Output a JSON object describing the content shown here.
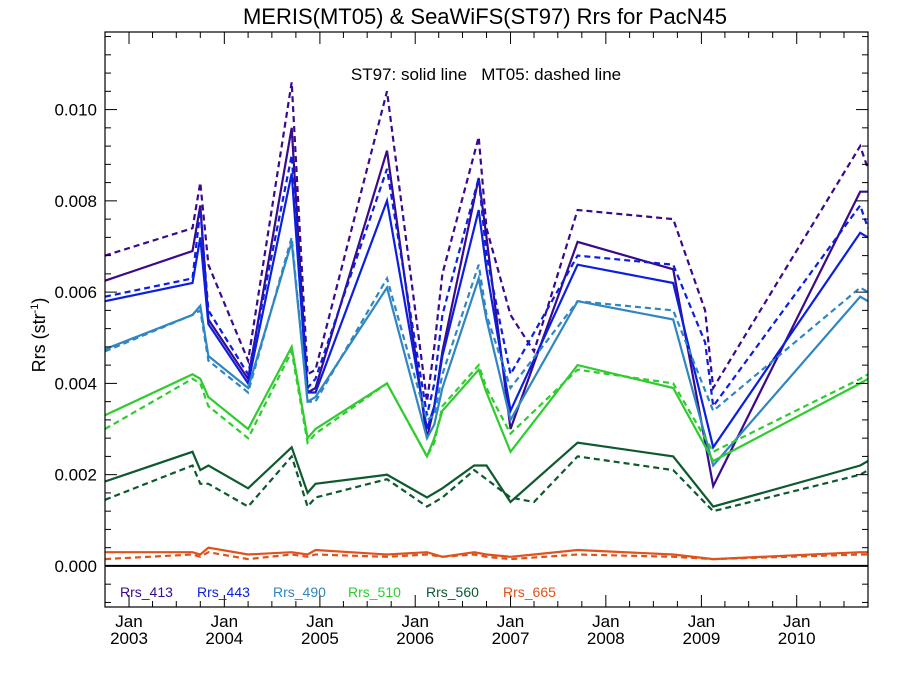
{
  "chart_data": {
    "type": "line",
    "title": "MERIS(MT05) & SeaWiFS(ST97)  Rrs for PacN45",
    "annotation": "ST97: solid line   MT05: dashed line",
    "ylabel": "Rrs (str",
    "ylabel_sup": "-1",
    "ylabel_close": ")",
    "xlim": [
      "2002-10-01",
      "2010-10-01"
    ],
    "ylim": [
      -0.0009,
      0.0117
    ],
    "yticks": [
      0.0,
      0.002,
      0.004,
      0.006,
      0.008,
      0.01
    ],
    "yticklabels": [
      "0.000",
      "0.002",
      "0.004",
      "0.006",
      "0.008",
      "0.010"
    ],
    "xticks": [
      {
        "date": "2003-01-01",
        "month": "Jan",
        "year": "2003"
      },
      {
        "date": "2004-01-01",
        "month": "Jan",
        "year": "2004"
      },
      {
        "date": "2005-01-01",
        "month": "Jan",
        "year": "2005"
      },
      {
        "date": "2006-01-01",
        "month": "Jan",
        "year": "2006"
      },
      {
        "date": "2007-01-01",
        "month": "Jan",
        "year": "2007"
      },
      {
        "date": "2008-01-01",
        "month": "Jan",
        "year": "2008"
      },
      {
        "date": "2009-01-01",
        "month": "Jan",
        "year": "2009"
      },
      {
        "date": "2010-01-01",
        "month": "Jan",
        "year": "2010"
      }
    ],
    "legend_position": "bottom-left",
    "series": [
      {
        "name": "Rrs_413",
        "sensor": "ST97",
        "style": "solid",
        "color": "#3a0a8c",
        "x": [
          "2002-10-01",
          "2003-09-01",
          "2003-10-01",
          "2003-11-01",
          "2004-04-01",
          "2004-09-15",
          "2004-11-15",
          "2004-12-15",
          "2005-09-15",
          "2006-02-15",
          "2006-03-15",
          "2006-04-15",
          "2006-09-01",
          "2006-10-01",
          "2007-01-01",
          "2007-09-15",
          "2008-09-15",
          "2009-02-15",
          "2010-09-01",
          "2010-10-01"
        ],
        "y": [
          0.00625,
          0.0069,
          0.0079,
          0.0054,
          0.0041,
          0.0096,
          0.0038,
          0.0039,
          0.0091,
          0.0028,
          0.0035,
          0.0047,
          0.0085,
          0.0072,
          0.003,
          0.0071,
          0.0065,
          0.00175,
          0.0082,
          0.0082
        ]
      },
      {
        "name": "Rrs_413",
        "sensor": "MT05",
        "style": "dashed",
        "color": "#3a0a8c",
        "x": [
          "2002-10-01",
          "2003-09-01",
          "2003-10-01",
          "2003-11-01",
          "2004-04-01",
          "2004-09-15",
          "2004-11-15",
          "2004-12-15",
          "2005-09-15",
          "2006-02-15",
          "2006-03-15",
          "2006-04-15",
          "2006-09-01",
          "2006-10-01",
          "2007-01-01",
          "2007-04-01",
          "2007-09-15",
          "2008-09-15",
          "2009-01-15",
          "2009-02-15",
          "2010-09-01",
          "2010-10-01"
        ],
        "y": [
          0.0068,
          0.0074,
          0.0084,
          0.0066,
          0.0045,
          0.0106,
          0.0042,
          0.0043,
          0.0104,
          0.0036,
          0.0048,
          0.0064,
          0.0094,
          0.0074,
          0.0055,
          0.0047,
          0.0078,
          0.0076,
          0.0056,
          0.0039,
          0.0092,
          0.0087
        ]
      },
      {
        "name": "Rrs_443",
        "sensor": "ST97",
        "style": "solid",
        "color": "#0a1fe0",
        "x": [
          "2002-10-01",
          "2003-09-01",
          "2003-10-01",
          "2003-11-01",
          "2004-04-01",
          "2004-09-15",
          "2004-11-15",
          "2004-12-15",
          "2005-09-15",
          "2006-02-15",
          "2006-03-15",
          "2006-04-15",
          "2006-09-01",
          "2006-10-01",
          "2007-01-01",
          "2007-09-15",
          "2008-09-15",
          "2009-02-15",
          "2010-09-01",
          "2010-10-01"
        ],
        "y": [
          0.0058,
          0.0062,
          0.0072,
          0.0053,
          0.004,
          0.0086,
          0.0038,
          0.0038,
          0.008,
          0.003,
          0.0035,
          0.0046,
          0.0078,
          0.0065,
          0.0034,
          0.0066,
          0.0062,
          0.0026,
          0.0073,
          0.0072
        ]
      },
      {
        "name": "Rrs_443",
        "sensor": "MT05",
        "style": "dashed",
        "color": "#0a1fe0",
        "x": [
          "2002-10-01",
          "2003-09-01",
          "2003-10-01",
          "2003-11-01",
          "2004-04-01",
          "2004-09-15",
          "2004-11-15",
          "2004-12-15",
          "2005-09-15",
          "2006-02-15",
          "2006-03-15",
          "2006-04-15",
          "2006-09-01",
          "2006-10-01",
          "2007-01-01",
          "2007-09-15",
          "2008-09-15",
          "2009-01-15",
          "2009-02-15",
          "2010-09-01",
          "2010-10-01"
        ],
        "y": [
          0.0059,
          0.0063,
          0.0078,
          0.0056,
          0.0042,
          0.009,
          0.0039,
          0.0041,
          0.0087,
          0.0033,
          0.004,
          0.0055,
          0.0085,
          0.0068,
          0.0042,
          0.0068,
          0.0066,
          0.0049,
          0.0035,
          0.0079,
          0.0074
        ]
      },
      {
        "name": "Rrs_490",
        "sensor": "ST97",
        "style": "solid",
        "color": "#2f86c2",
        "x": [
          "2002-10-01",
          "2003-09-01",
          "2003-10-01",
          "2003-11-01",
          "2004-04-01",
          "2004-09-15",
          "2004-11-15",
          "2004-12-15",
          "2005-09-15",
          "2006-02-15",
          "2006-03-15",
          "2006-04-15",
          "2006-09-01",
          "2006-10-01",
          "2007-01-01",
          "2007-09-15",
          "2008-09-15",
          "2009-02-15",
          "2010-09-01",
          "2010-10-01"
        ],
        "y": [
          0.00475,
          0.0055,
          0.0057,
          0.0046,
          0.0039,
          0.0071,
          0.0036,
          0.0037,
          0.0061,
          0.0028,
          0.0031,
          0.0039,
          0.0063,
          0.0054,
          0.0032,
          0.0058,
          0.0054,
          0.0022,
          0.0059,
          0.0058
        ]
      },
      {
        "name": "Rrs_490",
        "sensor": "MT05",
        "style": "dashed",
        "color": "#2f86c2",
        "x": [
          "2002-10-01",
          "2003-09-01",
          "2003-10-01",
          "2003-11-01",
          "2004-04-01",
          "2004-09-15",
          "2004-11-15",
          "2004-12-15",
          "2005-09-15",
          "2006-02-15",
          "2006-03-15",
          "2006-04-15",
          "2006-09-01",
          "2006-10-01",
          "2007-01-01",
          "2007-09-15",
          "2008-09-15",
          "2009-02-15",
          "2010-09-01",
          "2010-10-01"
        ],
        "y": [
          0.0047,
          0.0055,
          0.0056,
          0.0045,
          0.0038,
          0.0072,
          0.0036,
          0.0036,
          0.0063,
          0.0032,
          0.0033,
          0.0042,
          0.0066,
          0.0055,
          0.0039,
          0.0058,
          0.0056,
          0.0034,
          0.0061,
          0.006
        ]
      },
      {
        "name": "Rrs_510",
        "sensor": "ST97",
        "style": "solid",
        "color": "#2fcc2f",
        "x": [
          "2002-10-01",
          "2003-09-01",
          "2003-10-01",
          "2003-11-01",
          "2004-04-01",
          "2004-09-15",
          "2004-11-15",
          "2004-12-15",
          "2005-09-15",
          "2006-02-15",
          "2006-03-15",
          "2006-04-15",
          "2006-09-01",
          "2006-10-01",
          "2007-01-01",
          "2007-09-15",
          "2008-09-15",
          "2009-02-15",
          "2010-09-01",
          "2010-10-01"
        ],
        "y": [
          0.0033,
          0.0042,
          0.0041,
          0.0037,
          0.003,
          0.0048,
          0.0028,
          0.003,
          0.004,
          0.0024,
          0.0028,
          0.0034,
          0.0043,
          0.0038,
          0.0025,
          0.0044,
          0.0039,
          0.0023,
          0.004,
          0.0041
        ]
      },
      {
        "name": "Rrs_510",
        "sensor": "MT05",
        "style": "dashed",
        "color": "#2fcc2f",
        "x": [
          "2002-10-01",
          "2003-09-01",
          "2003-10-01",
          "2003-11-01",
          "2004-04-01",
          "2004-09-15",
          "2004-11-15",
          "2004-12-15",
          "2005-09-15",
          "2006-02-15",
          "2006-03-15",
          "2006-04-15",
          "2006-09-01",
          "2006-10-01",
          "2007-01-01",
          "2007-09-15",
          "2008-09-15",
          "2009-02-15",
          "2010-09-01",
          "2010-10-01"
        ],
        "y": [
          0.003,
          0.0041,
          0.004,
          0.0035,
          0.0028,
          0.0047,
          0.0027,
          0.0029,
          0.004,
          0.0024,
          0.0027,
          0.0035,
          0.0044,
          0.0039,
          0.0029,
          0.0043,
          0.004,
          0.0025,
          0.0041,
          0.0042
        ]
      },
      {
        "name": "Rrs_560",
        "sensor": "ST97",
        "style": "solid",
        "color": "#0e5a2e",
        "x": [
          "2002-10-01",
          "2003-09-01",
          "2003-10-01",
          "2003-11-01",
          "2004-04-01",
          "2004-09-15",
          "2004-11-15",
          "2004-12-15",
          "2005-09-15",
          "2006-02-15",
          "2006-04-15",
          "2006-08-15",
          "2006-10-01",
          "2007-01-01",
          "2007-09-15",
          "2008-09-15",
          "2009-02-15",
          "2010-09-01",
          "2010-10-01"
        ],
        "y": [
          0.00185,
          0.0025,
          0.0021,
          0.0022,
          0.0017,
          0.0026,
          0.0016,
          0.0018,
          0.002,
          0.0015,
          0.0017,
          0.0022,
          0.0022,
          0.0014,
          0.0027,
          0.0024,
          0.0013,
          0.0022,
          0.0023
        ]
      },
      {
        "name": "Rrs_560",
        "sensor": "MT05",
        "style": "dashed",
        "color": "#0e5a2e",
        "x": [
          "2002-10-01",
          "2003-09-01",
          "2003-10-01",
          "2003-11-01",
          "2004-04-01",
          "2004-09-15",
          "2004-11-15",
          "2004-12-15",
          "2005-09-15",
          "2006-02-15",
          "2006-04-15",
          "2006-08-15",
          "2006-10-01",
          "2007-01-01",
          "2007-04-01",
          "2007-09-15",
          "2008-09-15",
          "2009-02-15",
          "2010-09-01",
          "2010-10-01"
        ],
        "y": [
          0.00145,
          0.0022,
          0.0018,
          0.0018,
          0.0013,
          0.0024,
          0.0013,
          0.0015,
          0.0019,
          0.0013,
          0.0015,
          0.0021,
          0.0019,
          0.0015,
          0.0014,
          0.0024,
          0.0021,
          0.0012,
          0.002,
          0.0021
        ]
      },
      {
        "name": "Rrs_665",
        "sensor": "ST97",
        "style": "solid",
        "color": "#e0521a",
        "x": [
          "2002-10-01",
          "2003-09-01",
          "2003-10-01",
          "2003-11-01",
          "2004-04-01",
          "2004-09-15",
          "2004-11-15",
          "2004-12-15",
          "2005-09-15",
          "2006-02-15",
          "2006-04-15",
          "2006-08-15",
          "2006-10-01",
          "2007-01-01",
          "2007-04-01",
          "2007-09-15",
          "2008-09-15",
          "2009-02-15",
          "2010-09-01",
          "2010-10-01"
        ],
        "y": [
          0.0003,
          0.0003,
          0.00025,
          0.0004,
          0.00025,
          0.0003,
          0.00025,
          0.00035,
          0.00025,
          0.0003,
          0.0002,
          0.0003,
          0.00025,
          0.0002,
          0.00025,
          0.00035,
          0.00025,
          0.00015,
          0.0003,
          0.0003
        ]
      },
      {
        "name": "Rrs_665",
        "sensor": "MT05",
        "style": "dashed",
        "color": "#e0521a",
        "x": [
          "2002-10-01",
          "2003-09-01",
          "2003-10-01",
          "2003-11-01",
          "2004-04-01",
          "2004-09-15",
          "2004-11-15",
          "2004-12-15",
          "2005-09-15",
          "2006-02-15",
          "2006-04-15",
          "2006-08-15",
          "2006-10-01",
          "2007-01-01",
          "2007-09-15",
          "2008-09-15",
          "2009-02-15",
          "2010-09-01",
          "2010-10-01"
        ],
        "y": [
          0.00015,
          0.00025,
          0.0002,
          0.0003,
          0.00015,
          0.00025,
          0.0002,
          0.00025,
          0.0002,
          0.00025,
          0.0002,
          0.00025,
          0.0002,
          0.00015,
          0.00025,
          0.0002,
          0.00015,
          0.00025,
          0.00025
        ]
      }
    ],
    "legend": [
      {
        "label": "Rrs_413",
        "color": "#3a0a8c"
      },
      {
        "label": "Rrs_443",
        "color": "#0a1fe0"
      },
      {
        "label": "Rrs_490",
        "color": "#2f86c2"
      },
      {
        "label": "Rrs_510",
        "color": "#2fcc2f"
      },
      {
        "label": "Rrs_560",
        "color": "#0e5a2e"
      },
      {
        "label": "Rrs_665",
        "color": "#e0521a"
      }
    ]
  }
}
